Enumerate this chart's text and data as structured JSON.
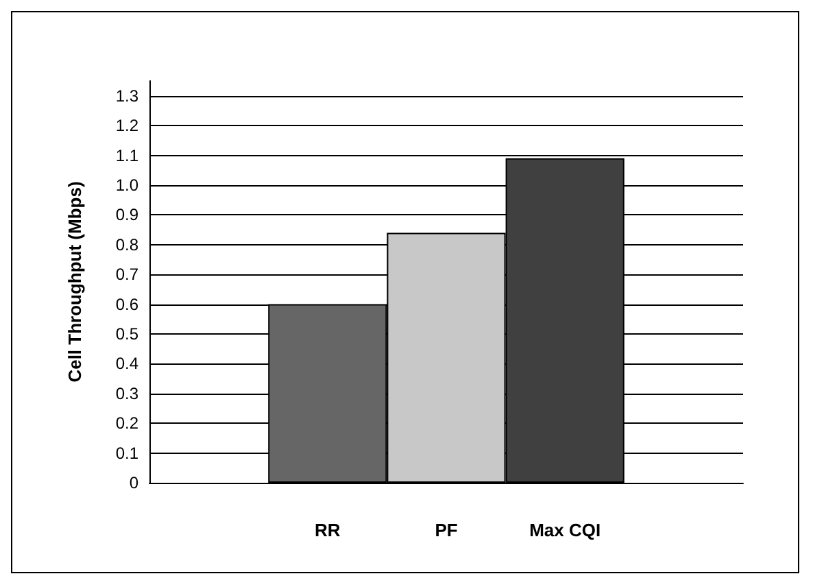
{
  "chart_data": {
    "type": "bar",
    "ylabel": "Cell Throughput (Mbps)",
    "categories": [
      null,
      "RR",
      "PF",
      "Max CQI",
      null
    ],
    "values": [
      null,
      0.6,
      0.84,
      1.09,
      null
    ],
    "colors": [
      "#888888",
      "#666666",
      "#c8c8c8",
      "#404040",
      "#888888"
    ],
    "ylim": [
      0,
      1.35
    ],
    "yticks": [
      0,
      0.1,
      0.2,
      0.3,
      0.4,
      0.5,
      0.6,
      0.7,
      0.8,
      0.9,
      {
        "value": 1,
        "label": "1.0"
      },
      1.1,
      1.2,
      1.3
    ],
    "grid": "y"
  }
}
